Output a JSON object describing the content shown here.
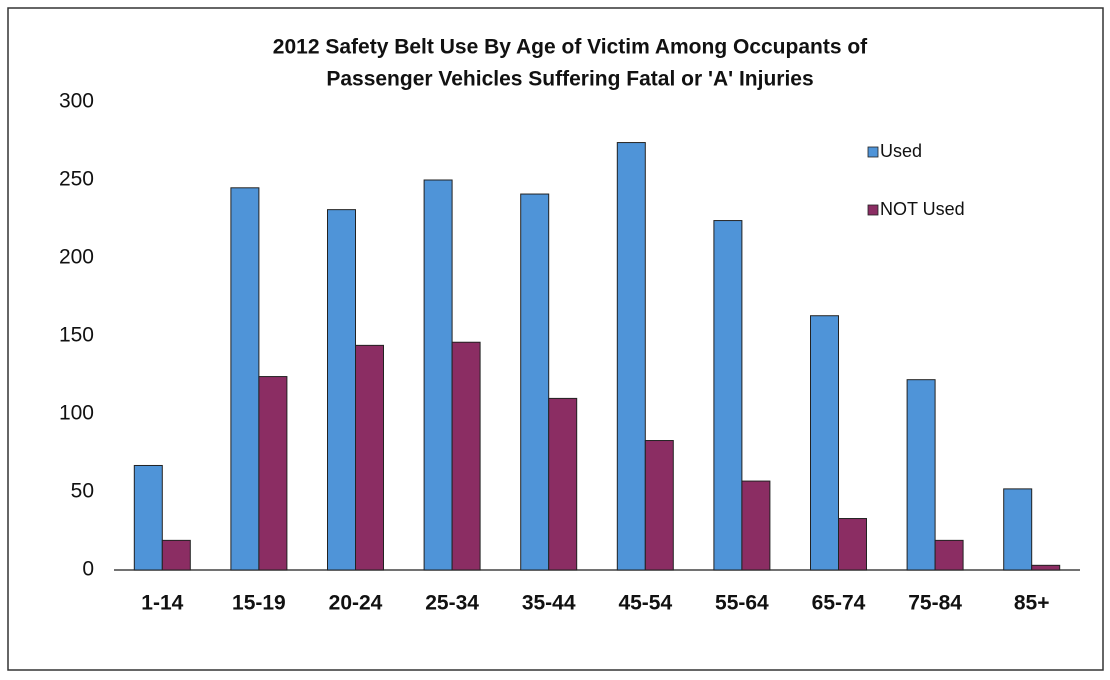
{
  "chart_data": {
    "type": "bar",
    "title": [
      "2012 Safety Belt Use By Age of Victim Among Occupants of",
      "Passenger Vehicles Suffering Fatal or 'A' Injuries"
    ],
    "categories": [
      "1-14",
      "15-19",
      "20-24",
      "25-34",
      "35-44",
      "45-54",
      "55-64",
      "65-74",
      "75-84",
      "85+"
    ],
    "series": [
      {
        "name": "Used",
        "color": "#4f94d8",
        "values": [
          67,
          245,
          231,
          250,
          241,
          274,
          224,
          163,
          122,
          52
        ]
      },
      {
        "name": "NOT Used",
        "color": "#8b2d63",
        "values": [
          19,
          124,
          144,
          146,
          110,
          83,
          57,
          33,
          19,
          3
        ]
      }
    ],
    "ylim": [
      0,
      300
    ],
    "yticks": [
      0,
      50,
      100,
      150,
      200,
      250,
      300
    ],
    "grid": false,
    "legend": "upper-right"
  }
}
